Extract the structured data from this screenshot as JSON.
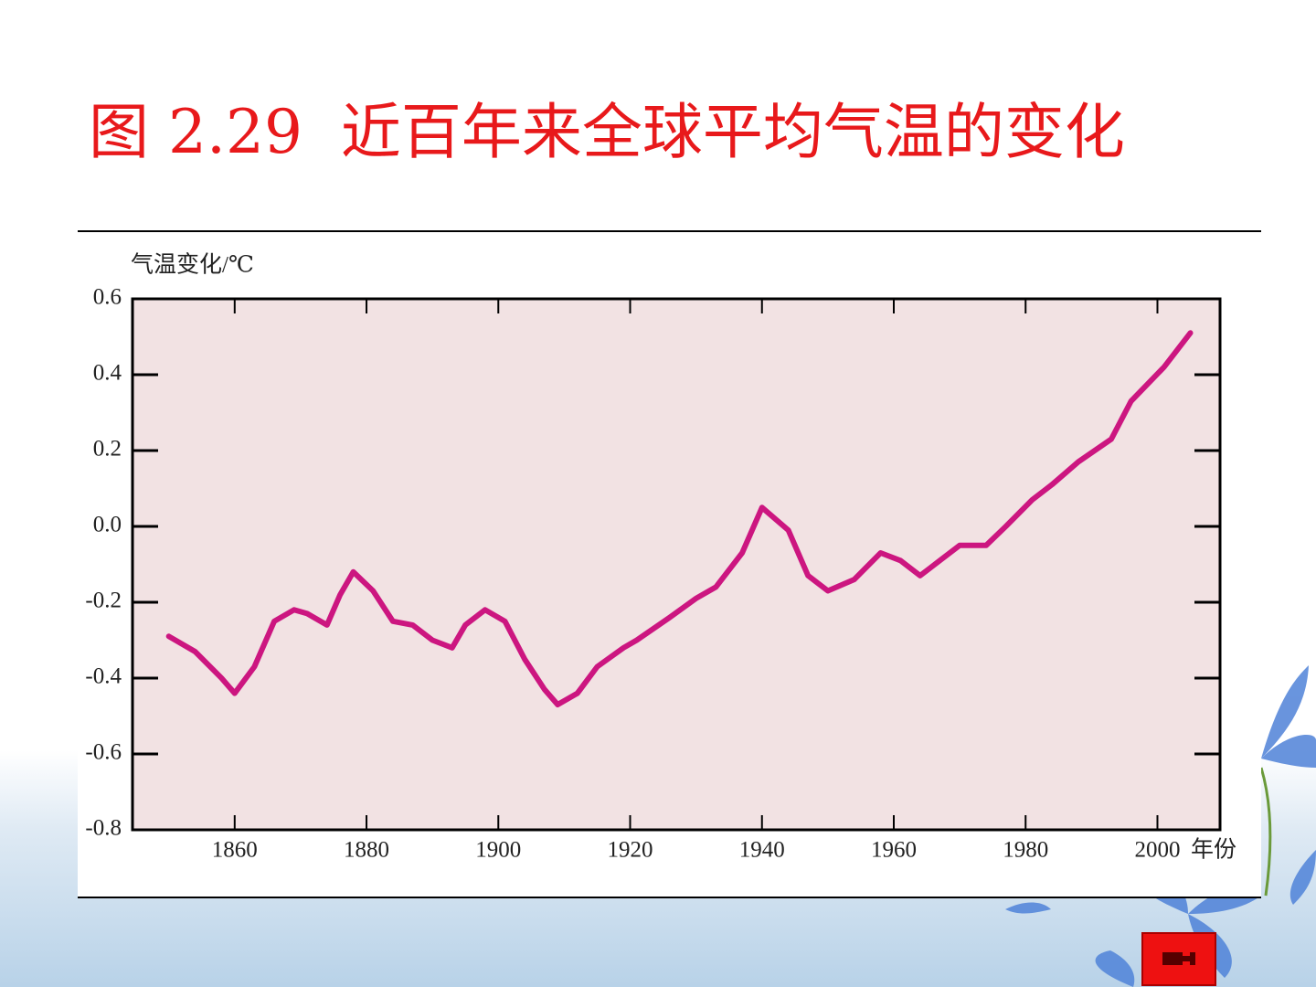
{
  "title": "图 2.29  近百年来全球平均气温的变化",
  "chart_data": {
    "type": "line",
    "y_label": "气温变化/℃",
    "x_label": "年份",
    "x": [
      1850,
      1854,
      1858,
      1860,
      1863,
      1866,
      1869,
      1871,
      1874,
      1876,
      1878,
      1881,
      1884,
      1887,
      1890,
      1893,
      1895,
      1898,
      1901,
      1904,
      1907,
      1909,
      1912,
      1915,
      1919,
      1921,
      1926,
      1930,
      1933,
      1937,
      1940,
      1944,
      1947,
      1950,
      1954,
      1958,
      1961,
      1964,
      1967,
      1970,
      1974,
      1977,
      1981,
      1984,
      1988,
      1993,
      1996,
      2001,
      2005
    ],
    "values": [
      -0.29,
      -0.33,
      -0.4,
      -0.44,
      -0.37,
      -0.25,
      -0.22,
      -0.23,
      -0.26,
      -0.18,
      -0.12,
      -0.17,
      -0.25,
      -0.26,
      -0.3,
      -0.32,
      -0.26,
      -0.22,
      -0.25,
      -0.35,
      -0.43,
      -0.47,
      -0.44,
      -0.37,
      -0.32,
      -0.3,
      -0.24,
      -0.19,
      -0.16,
      -0.07,
      0.05,
      -0.01,
      -0.13,
      -0.17,
      -0.14,
      -0.07,
      -0.09,
      -0.13,
      -0.09,
      -0.05,
      -0.05,
      0.0,
      0.07,
      0.11,
      0.17,
      0.23,
      0.33,
      0.42,
      0.51
    ],
    "color": "#cc1680",
    "xlim": [
      1844.5,
      2009.5
    ],
    "xticks": [
      1860,
      1880,
      1900,
      1920,
      1940,
      1960,
      1980,
      2000
    ],
    "ylim": [
      -0.8,
      0.6
    ],
    "yticks": [
      -0.8,
      -0.6,
      -0.4,
      -0.2,
      {
        "value": 0,
        "label": "0.0"
      },
      0.2,
      0.4,
      0.6
    ]
  }
}
